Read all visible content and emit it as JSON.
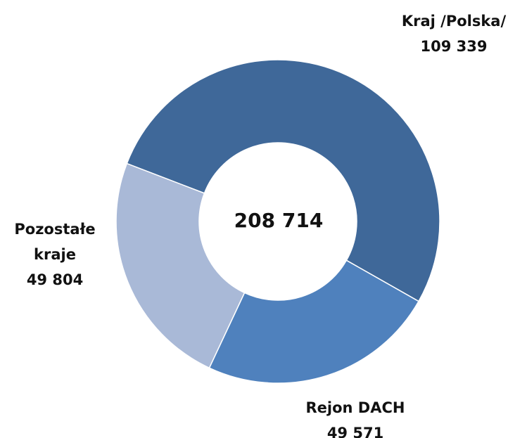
{
  "chart_data": {
    "type": "donut",
    "categories": [
      "Kraj /Polska/",
      "Rejon DACH",
      "Pozostałe kraje"
    ],
    "values": [
      109339,
      49571,
      49804
    ],
    "value_labels": [
      "109 339",
      "49 571",
      "49 804"
    ],
    "colors": [
      "#3f6899",
      "#4f81bd",
      "#a9b9d7"
    ],
    "center_label": "208 714"
  }
}
